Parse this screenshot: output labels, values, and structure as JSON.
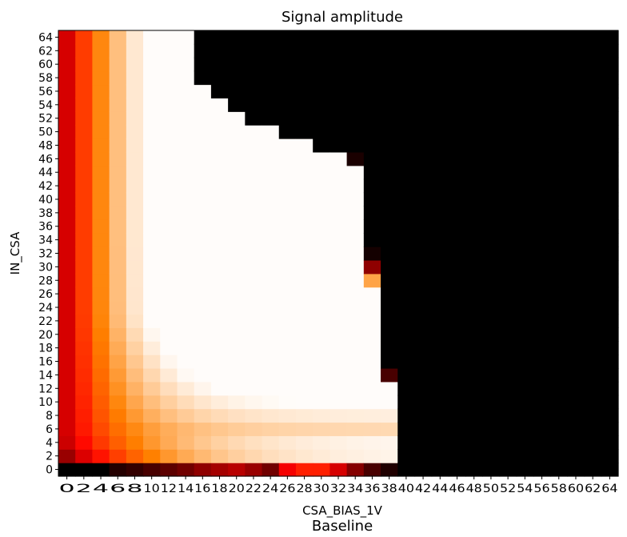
{
  "chart_data": {
    "type": "heatmap",
    "title": "Signal amplitude",
    "footer_text": "Baseline",
    "xlabel": "CSA_BIAS_1V",
    "ylabel": "IN_CSA",
    "x_categories": [
      "0",
      "2",
      "4",
      "6",
      "8",
      "10",
      "12",
      "14",
      "16",
      "18",
      "20",
      "22",
      "24",
      "26",
      "28",
      "30",
      "32",
      "34",
      "36",
      "38",
      "40",
      "42",
      "44",
      "46",
      "48",
      "50",
      "52",
      "54",
      "56",
      "58",
      "60",
      "62",
      "64"
    ],
    "y_categories": [
      "0",
      "2",
      "4",
      "6",
      "8",
      "10",
      "12",
      "14",
      "16",
      "18",
      "20",
      "22",
      "24",
      "26",
      "28",
      "30",
      "32",
      "34",
      "36",
      "38",
      "40",
      "42",
      "44",
      "46",
      "48",
      "50",
      "52",
      "54",
      "56",
      "58",
      "60",
      "62",
      "64"
    ],
    "colormap": "gist_heat",
    "colormap_stops": [
      "#000000",
      "#800000",
      "#ff0000",
      "#ff8000",
      "#ffffff"
    ],
    "grid": false,
    "colorbar": false,
    "valid_region_upper_y_by_x": [
      64,
      64,
      64,
      64,
      64,
      64,
      64,
      64,
      56,
      54,
      52,
      50,
      50,
      48,
      48,
      46,
      46,
      44,
      32,
      12,
      -1,
      -1,
      -1,
      -1,
      -1,
      -1,
      -1,
      -1,
      -1,
      -1,
      -1,
      -1,
      -1
    ],
    "row0_values": [
      0.0,
      0.0,
      0.0,
      0.07,
      0.1,
      0.14,
      0.18,
      0.22,
      0.28,
      0.32,
      0.36,
      0.3,
      0.22,
      0.48,
      0.56,
      0.56,
      0.42,
      0.26,
      0.14,
      0.06,
      0,
      0,
      0,
      0,
      0,
      0,
      0,
      0,
      0,
      0,
      0,
      0,
      0
    ],
    "special_cells": [
      {
        "x": "34",
        "y": "46",
        "value": 0.05
      },
      {
        "x": "36",
        "y": "32",
        "value": 0.04
      },
      {
        "x": "36",
        "y": "30",
        "value": 0.28
      },
      {
        "x": "36",
        "y": "28",
        "value": 0.82
      },
      {
        "x": "38",
        "y": "14",
        "value": 0.14
      }
    ]
  }
}
